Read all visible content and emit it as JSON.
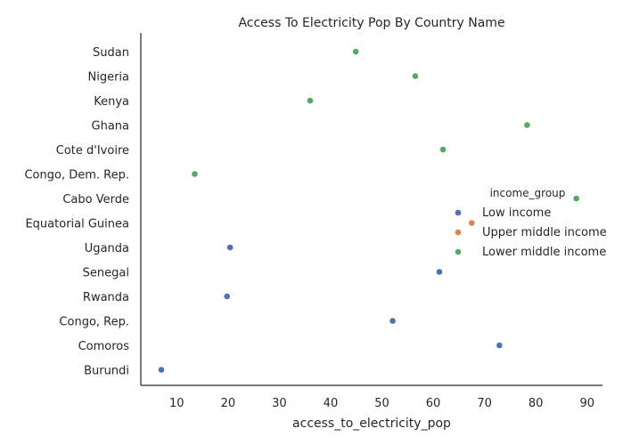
{
  "chart_data": {
    "type": "scatter",
    "title": "Access To Electricity Pop By Country Name",
    "xlabel": "access_to_electricity_pop",
    "ylabel": "",
    "xlim": [
      3,
      93
    ],
    "xticks": [
      10,
      20,
      30,
      40,
      50,
      60,
      70,
      80,
      90
    ],
    "categories": [
      "Sudan",
      "Nigeria",
      "Kenya",
      "Ghana",
      "Cote d'Ivoire",
      "Congo, Dem. Rep.",
      "Cabo Verde",
      "Equatorial Guinea",
      "Uganda",
      "Senegal",
      "Rwanda",
      "Congo, Rep.",
      "Comoros",
      "Burundi"
    ],
    "grid": false,
    "legend": {
      "title": "income_group",
      "position": "center-right"
    },
    "series": [
      {
        "name": "Low income",
        "color": "#4c72b0",
        "points": [
          {
            "y": "Uganda",
            "x": 20.4
          },
          {
            "y": "Senegal",
            "x": 61.2
          },
          {
            "y": "Rwanda",
            "x": 19.8
          },
          {
            "y": "Congo, Rep.",
            "x": 52.1
          },
          {
            "y": "Comoros",
            "x": 72.9
          },
          {
            "y": "Burundi",
            "x": 7.0
          }
        ]
      },
      {
        "name": "Upper middle income",
        "color": "#dd8452",
        "points": [
          {
            "y": "Equatorial Guinea",
            "x": 67.5
          }
        ]
      },
      {
        "name": "Lower middle income",
        "color": "#55a868",
        "points": [
          {
            "y": "Sudan",
            "x": 44.9
          },
          {
            "y": "Nigeria",
            "x": 56.5
          },
          {
            "y": "Kenya",
            "x": 36.0
          },
          {
            "y": "Ghana",
            "x": 78.3
          },
          {
            "y": "Cote d'Ivoire",
            "x": 61.9
          },
          {
            "y": "Congo, Dem. Rep.",
            "x": 13.5
          },
          {
            "y": "Cabo Verde",
            "x": 87.9
          }
        ]
      }
    ]
  }
}
